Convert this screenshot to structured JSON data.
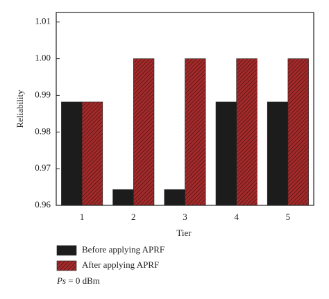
{
  "chart_data": {
    "type": "bar",
    "x_label": "Tier",
    "y_label": "Reliability",
    "categories": [
      "1",
      "2",
      "3",
      "4",
      "5"
    ],
    "series": [
      {
        "name": "Before applying APRF",
        "color": "#1c1c1c",
        "hatch": false,
        "values": [
          0.9882,
          0.9643,
          0.9643,
          0.9882,
          0.9882
        ]
      },
      {
        "name": "After applying APRF",
        "color": "#a32a2a",
        "hatch": true,
        "values": [
          0.9882,
          1,
          1,
          1,
          1
        ]
      }
    ],
    "ylim": [
      0.96,
      1.0126
    ],
    "yticks": [
      0.96,
      0.97,
      0.98,
      0.99,
      {
        "value": 1,
        "label": "1.00"
      },
      1.01
    ],
    "grid": false,
    "annotation": {
      "symbol": "Ps",
      "text": " = 0 dBm"
    }
  }
}
